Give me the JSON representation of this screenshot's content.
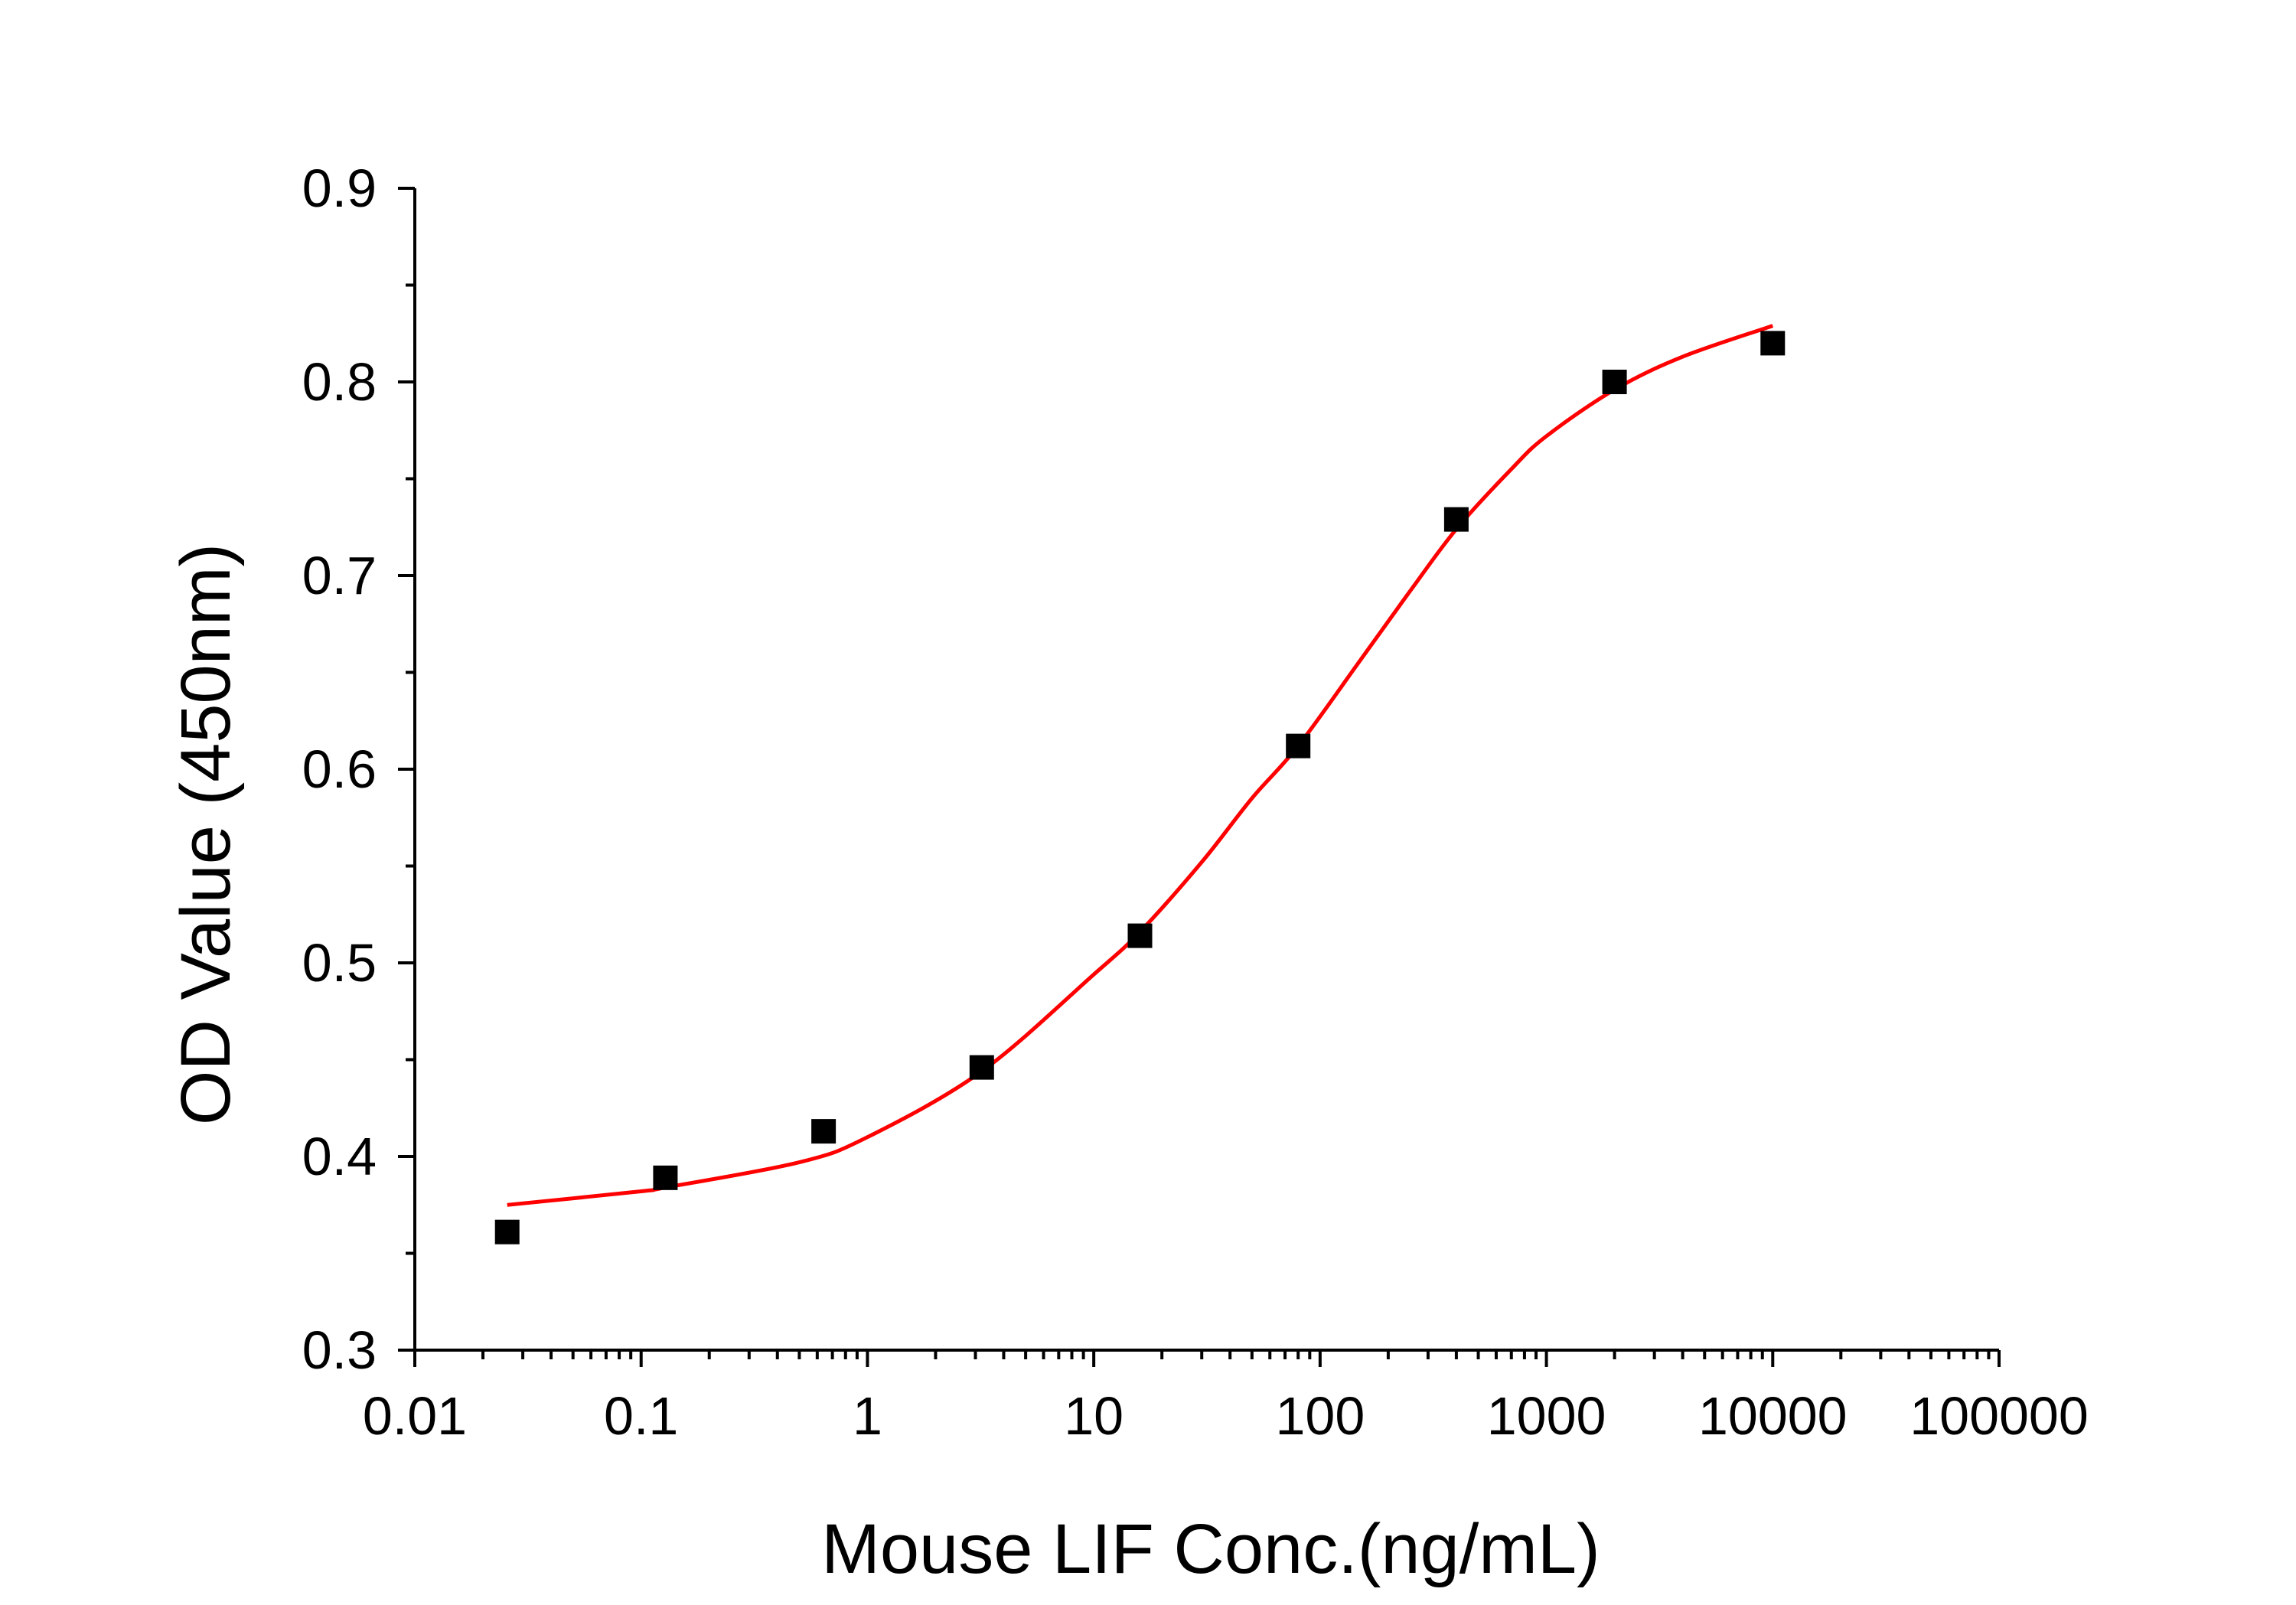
{
  "chart_data": {
    "type": "scatter",
    "title": "",
    "xlabel": "Mouse LIF Conc.(ng/mL)",
    "ylabel": "OD Value (450nm)",
    "x_scale": "log",
    "xlim": [
      0.01,
      100000
    ],
    "ylim": [
      0.3,
      0.9
    ],
    "x_ticks": [
      0.01,
      0.1,
      1,
      10,
      100,
      1000,
      10000,
      100000
    ],
    "x_tick_labels": [
      "0.01",
      "0.1",
      "1",
      "10",
      "100",
      "1000",
      "10000",
      "100000"
    ],
    "y_ticks": [
      0.3,
      0.4,
      0.5,
      0.6,
      0.7,
      0.8,
      0.9
    ],
    "y_tick_labels": [
      "0.3",
      "0.4",
      "0.5",
      "0.6",
      "0.7",
      "0.8",
      "0.9"
    ],
    "grid": false,
    "legend": "none",
    "series": [
      {
        "marker": "square",
        "color": "#000000",
        "points": [
          {
            "x": 0.0256,
            "y": 0.361
          },
          {
            "x": 0.128,
            "y": 0.389
          },
          {
            "x": 0.64,
            "y": 0.413
          },
          {
            "x": 3.2,
            "y": 0.446
          },
          {
            "x": 16,
            "y": 0.514
          },
          {
            "x": 80,
            "y": 0.612
          },
          {
            "x": 400,
            "y": 0.729
          },
          {
            "x": 2000,
            "y": 0.8
          },
          {
            "x": 10000,
            "y": 0.82
          }
        ]
      },
      {
        "style": "fit-curve",
        "color": "#ff0000",
        "points": [
          {
            "x": 0.0256,
            "y": 0.375
          },
          {
            "x": 0.1,
            "y": 0.382
          },
          {
            "x": 0.128,
            "y": 0.384
          },
          {
            "x": 0.5,
            "y": 0.397
          },
          {
            "x": 1,
            "y": 0.41
          },
          {
            "x": 3.2,
            "y": 0.444
          },
          {
            "x": 10,
            "y": 0.494
          },
          {
            "x": 16,
            "y": 0.516
          },
          {
            "x": 30,
            "y": 0.552
          },
          {
            "x": 50,
            "y": 0.585
          },
          {
            "x": 80,
            "y": 0.612
          },
          {
            "x": 150,
            "y": 0.656
          },
          {
            "x": 250,
            "y": 0.692
          },
          {
            "x": 400,
            "y": 0.724
          },
          {
            "x": 700,
            "y": 0.755
          },
          {
            "x": 1000,
            "y": 0.772
          },
          {
            "x": 2000,
            "y": 0.796
          },
          {
            "x": 4000,
            "y": 0.813
          },
          {
            "x": 10000,
            "y": 0.829
          }
        ]
      }
    ]
  }
}
